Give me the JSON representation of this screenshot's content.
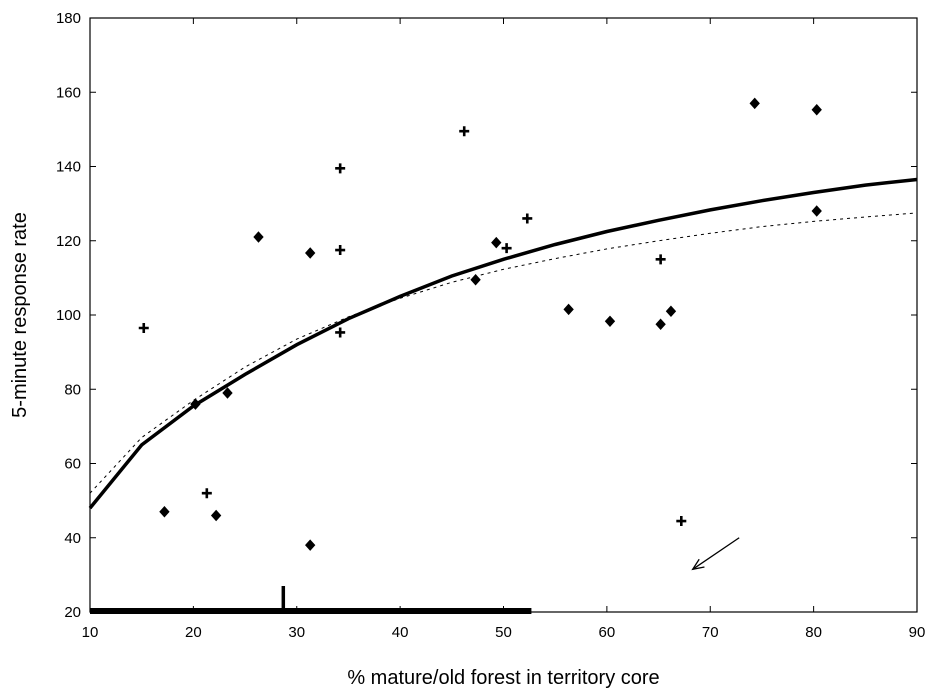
{
  "chart_data": {
    "type": "scatter",
    "title": "",
    "xlabel": "% mature/old forest in territory core",
    "ylabel": "5-minute response rate",
    "xlim": [
      10,
      90
    ],
    "ylim": [
      20,
      180
    ],
    "x_ticks": [
      10,
      20,
      30,
      40,
      50,
      60,
      70,
      80,
      90
    ],
    "y_ticks": [
      20,
      40,
      60,
      80,
      100,
      120,
      140,
      160,
      180
    ],
    "grid": false,
    "series": [
      {
        "marker": "plus",
        "points": [
          [
            15.2,
            96.5
          ],
          [
            21.3,
            52
          ],
          [
            34.2,
            139.5
          ],
          [
            34.2,
            117.5
          ],
          [
            34.2,
            95.3
          ],
          [
            46.2,
            149.5
          ],
          [
            50.3,
            118
          ],
          [
            52.3,
            126
          ],
          [
            65.2,
            115
          ],
          [
            67.2,
            44.5
          ]
        ]
      },
      {
        "marker": "diamond",
        "points": [
          [
            17.2,
            47
          ],
          [
            20.2,
            76
          ],
          [
            22.2,
            46
          ],
          [
            23.3,
            79
          ],
          [
            26.3,
            121
          ],
          [
            31.3,
            116.7
          ],
          [
            31.3,
            38
          ],
          [
            47.3,
            109.5
          ],
          [
            49.3,
            119.5
          ],
          [
            56.3,
            101.5
          ],
          [
            60.3,
            98.3
          ],
          [
            65.2,
            97.5
          ],
          [
            66.2,
            101
          ],
          [
            74.3,
            157
          ],
          [
            80.3,
            155.3
          ],
          [
            80.3,
            128
          ]
        ]
      }
    ],
    "fitted_curves": [
      {
        "style": "solid-thick",
        "points": [
          [
            10,
            48
          ],
          [
            15,
            65
          ],
          [
            20,
            75.5
          ],
          [
            25,
            84
          ],
          [
            30,
            92
          ],
          [
            35,
            99
          ],
          [
            40,
            105
          ],
          [
            45,
            110.5
          ],
          [
            50,
            115
          ],
          [
            55,
            119
          ],
          [
            60,
            122.5
          ],
          [
            65,
            125.5
          ],
          [
            70,
            128.3
          ],
          [
            75,
            130.8
          ],
          [
            80,
            133
          ],
          [
            85,
            135
          ],
          [
            90,
            136.5
          ]
        ]
      },
      {
        "style": "dotted",
        "points": [
          [
            10,
            52
          ],
          [
            15,
            67
          ],
          [
            20,
            77
          ],
          [
            25,
            86
          ],
          [
            30,
            93.5
          ],
          [
            35,
            99.5
          ],
          [
            40,
            104.5
          ],
          [
            45,
            108.8
          ],
          [
            50,
            112.3
          ],
          [
            55,
            115.2
          ],
          [
            60,
            117.8
          ],
          [
            65,
            120
          ],
          [
            70,
            122
          ],
          [
            75,
            123.8
          ],
          [
            80,
            125.2
          ],
          [
            85,
            126.4
          ],
          [
            90,
            127.5
          ]
        ]
      }
    ],
    "range_bar": {
      "from": 10,
      "to": 52.7,
      "tick": 28.7
    },
    "arrow": {
      "from": [
        72.8,
        40
      ],
      "to": [
        68.3,
        31.5
      ]
    }
  }
}
